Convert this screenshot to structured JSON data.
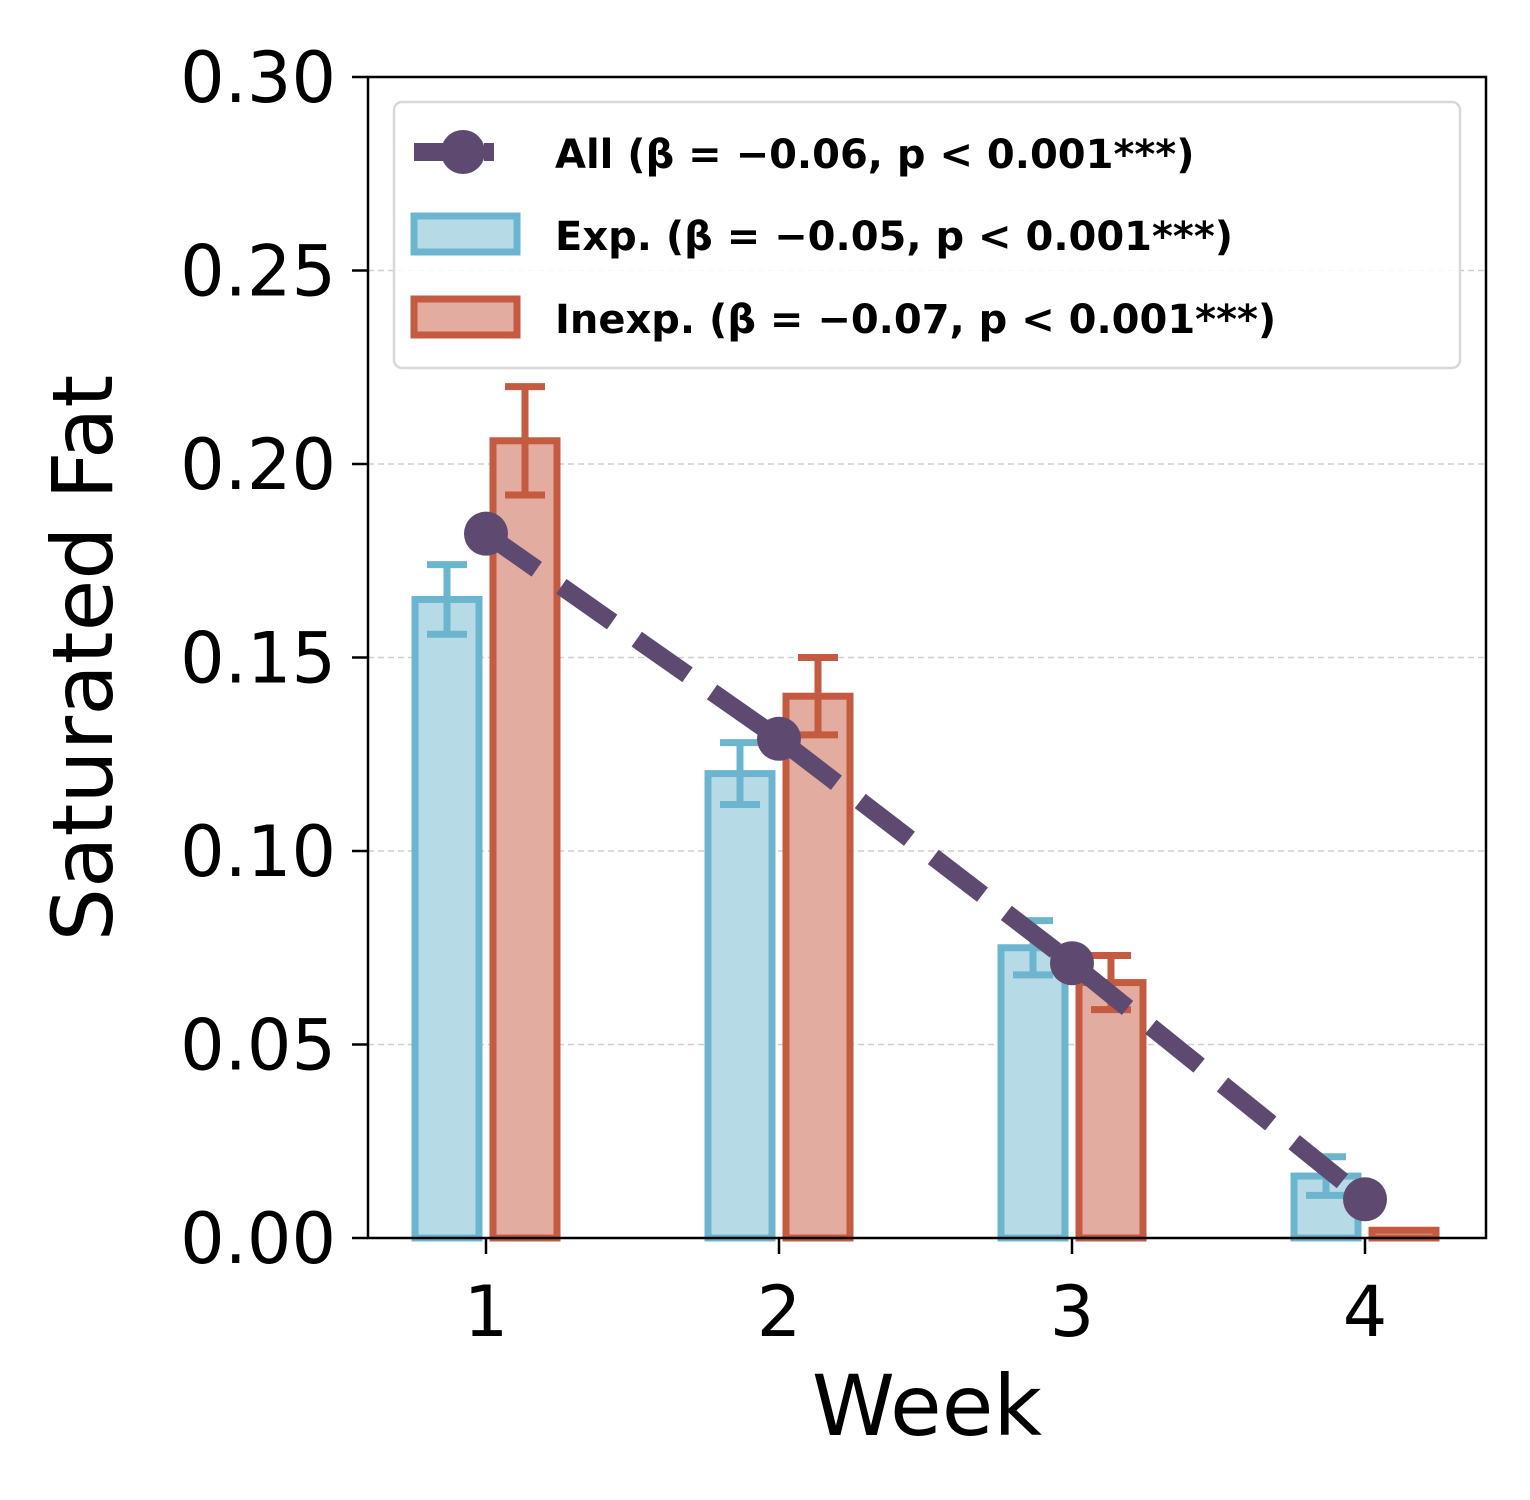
{
  "chart_data": {
    "type": "bar",
    "xlabel": "Week",
    "ylabel": "Saturated Fat",
    "categories": [
      "1",
      "2",
      "3",
      "4"
    ],
    "x": [
      1,
      2,
      3,
      4
    ],
    "ylim": [
      0,
      0.3
    ],
    "yticks": [
      "0.00",
      "0.05",
      "0.10",
      "0.15",
      "0.20",
      "0.25",
      "0.30"
    ],
    "ytick_values": [
      0,
      0.05,
      0.1,
      0.15,
      0.2,
      0.25,
      0.3
    ],
    "grid": "horizontal dashed",
    "legend_position": "top",
    "series": [
      {
        "name": "All (β = −0.06, p < 0.001***)",
        "type": "line",
        "style": "dashed",
        "marker": "circle",
        "color": "#5e4a70",
        "values": [
          0.182,
          0.129,
          0.071,
          0.01
        ]
      },
      {
        "name": "Exp. (β = −0.05, p < 0.001***)",
        "type": "bar",
        "color": "#6cb5cf",
        "fill": "#b6dbe6",
        "values": [
          0.165,
          0.12,
          0.075,
          0.016
        ],
        "errors": [
          0.009,
          0.008,
          0.007,
          0.005
        ]
      },
      {
        "name": "Inexp. (β = −0.07, p < 0.001***)",
        "type": "bar",
        "color": "#c45a40",
        "fill": "#e2aca0",
        "values": [
          0.206,
          0.14,
          0.066,
          0.002
        ],
        "errors": [
          0.014,
          0.01,
          0.007,
          0
        ]
      }
    ]
  }
}
